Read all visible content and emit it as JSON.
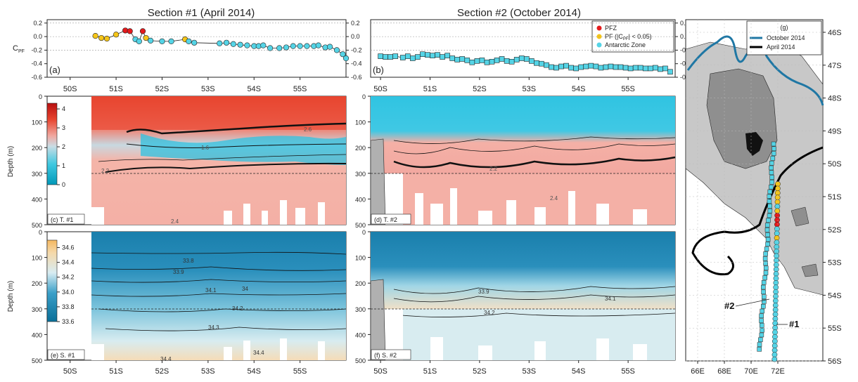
{
  "figure": {
    "titles": [
      "Section #1 (April 2014)",
      "Section #2 (October 2014)"
    ],
    "panel_labels": {
      "a": "(a)",
      "b": "(b)",
      "c": "(c) T. #1",
      "d": "(d) T. #2",
      "e": "(e) S. #1",
      "f": "(f) S. #2",
      "g": "(g)"
    },
    "cpf_label": "C",
    "cpf_sub": "PF",
    "depth_label": "Depth (m)",
    "lat_ticks": [
      "50S",
      "51S",
      "52S",
      "53S",
      "54S",
      "55S"
    ],
    "cpf_ticks": [
      "0.2",
      "0.0",
      "-0.2",
      "-0.4",
      "-0.6"
    ],
    "depth_ticks": [
      "0",
      "100",
      "200",
      "300",
      "400",
      "500"
    ],
    "temp_colorbar_ticks": [
      "4",
      "3",
      "2",
      "1",
      "0"
    ],
    "sal_colorbar_ticks": [
      "34.6",
      "34.4",
      "34.2",
      "34.0",
      "33.8",
      "33.6"
    ],
    "legend_b": [
      "PFZ",
      "PF (|C",
      "PF",
      "| < 0.05)",
      "Antarctic Zone"
    ],
    "legend_g": [
      "October 2014",
      "April 2014"
    ],
    "map_lat_ticks": [
      "46S",
      "47S",
      "48S",
      "49S",
      "50S",
      "51S",
      "52S",
      "53S",
      "54S",
      "55S",
      "56S"
    ],
    "map_lon_ticks": [
      "66E",
      "68E",
      "70E",
      "72E"
    ],
    "section_labels": [
      "#2",
      "#1"
    ],
    "contour_labels_t1": [
      "2.6",
      "1.6",
      "2.2",
      "2.4"
    ],
    "contour_labels_t2": [
      "2.2",
      "2.4"
    ],
    "contour_labels_s1": [
      "33.8",
      "33.9",
      "34",
      "34.1",
      "34.2",
      "34.3",
      "34.4",
      "34.4"
    ],
    "contour_labels_s2": [
      "33.9",
      "34.1",
      "34.2"
    ]
  },
  "colors": {
    "pfz": "#e41a1c",
    "pf": "#f5c518",
    "az": "#55d4e6",
    "oct_track": "#1f77a4",
    "apr_track": "#000000",
    "map_light": "#c8c8c8",
    "map_mid": "#8f8f8f",
    "map_dark": "#555555"
  },
  "chart_data": [
    {
      "panel": "a",
      "type": "scatter",
      "title": "Section #1 (April 2014)",
      "ylabel": "C_PF",
      "ylim": [
        -0.6,
        0.25
      ],
      "xlim": [
        49.5,
        56
      ],
      "series": [
        {
          "name": "C_PF",
          "points": [
            [
              50.55,
              0.01,
              "PF"
            ],
            [
              50.68,
              -0.02,
              "PF"
            ],
            [
              50.8,
              -0.03,
              "PF"
            ],
            [
              51.0,
              0.03,
              "PF"
            ],
            [
              51.2,
              0.09,
              "PFZ"
            ],
            [
              51.3,
              0.08,
              "PFZ"
            ],
            [
              51.42,
              -0.04,
              "AZ"
            ],
            [
              51.5,
              -0.07,
              "AZ"
            ],
            [
              51.58,
              0.08,
              "PFZ"
            ],
            [
              51.65,
              -0.02,
              "PF"
            ],
            [
              51.75,
              -0.06,
              "AZ"
            ],
            [
              52.0,
              -0.07,
              "AZ"
            ],
            [
              52.2,
              -0.07,
              "AZ"
            ],
            [
              52.5,
              -0.04,
              "PF"
            ],
            [
              52.58,
              -0.07,
              "AZ"
            ],
            [
              52.7,
              -0.09,
              "AZ"
            ],
            [
              53.25,
              -0.1,
              "AZ"
            ],
            [
              53.4,
              -0.09,
              "AZ"
            ],
            [
              53.55,
              -0.11,
              "AZ"
            ],
            [
              53.7,
              -0.12,
              "AZ"
            ],
            [
              53.85,
              -0.13,
              "AZ"
            ],
            [
              54.0,
              -0.14,
              "AZ"
            ],
            [
              54.1,
              -0.14,
              "AZ"
            ],
            [
              54.2,
              -0.13,
              "AZ"
            ],
            [
              54.35,
              -0.17,
              "AZ"
            ],
            [
              54.55,
              -0.17,
              "AZ"
            ],
            [
              54.7,
              -0.16,
              "AZ"
            ],
            [
              54.85,
              -0.14,
              "AZ"
            ],
            [
              55.0,
              -0.14,
              "AZ"
            ],
            [
              55.15,
              -0.14,
              "AZ"
            ],
            [
              55.3,
              -0.14,
              "AZ"
            ],
            [
              55.4,
              -0.13,
              "AZ"
            ],
            [
              55.55,
              -0.16,
              "AZ"
            ],
            [
              55.65,
              -0.15,
              "AZ"
            ],
            [
              55.8,
              -0.2,
              "AZ"
            ],
            [
              55.93,
              -0.26,
              "AZ"
            ],
            [
              56.0,
              -0.32,
              "AZ"
            ]
          ]
        }
      ]
    },
    {
      "panel": "b",
      "type": "scatter",
      "title": "Section #2 (October 2014)",
      "ylabel": "C_PF",
      "ylim": [
        -0.6,
        0.25
      ],
      "xlim": [
        49.8,
        55.95
      ],
      "series": [
        {
          "name": "Antarctic Zone",
          "x": [
            50.0,
            50.1,
            50.2,
            50.3,
            50.45,
            50.55,
            50.65,
            50.75,
            50.85,
            50.95,
            51.05,
            51.15,
            51.25,
            51.35,
            51.45,
            51.55,
            51.65,
            51.75,
            51.85,
            51.95,
            52.05,
            52.15,
            52.25,
            52.35,
            52.45,
            52.55,
            52.65,
            52.75,
            52.85,
            52.95,
            53.05,
            53.15,
            53.25,
            53.35,
            53.45,
            53.55,
            53.65,
            53.75,
            53.85,
            53.95,
            54.05,
            54.15,
            54.25,
            54.35,
            54.45,
            54.55,
            54.65,
            54.75,
            54.85,
            54.95,
            55.05,
            55.15,
            55.25,
            55.35,
            55.45,
            55.55,
            55.65,
            55.75,
            55.85
          ],
          "y": [
            -0.29,
            -0.3,
            -0.3,
            -0.29,
            -0.31,
            -0.29,
            -0.32,
            -0.3,
            -0.26,
            -0.27,
            -0.28,
            -0.27,
            -0.3,
            -0.28,
            -0.32,
            -0.34,
            -0.33,
            -0.35,
            -0.38,
            -0.36,
            -0.35,
            -0.38,
            -0.37,
            -0.35,
            -0.33,
            -0.36,
            -0.37,
            -0.34,
            -0.32,
            -0.33,
            -0.36,
            -0.39,
            -0.4,
            -0.42,
            -0.45,
            -0.46,
            -0.44,
            -0.43,
            -0.46,
            -0.47,
            -0.45,
            -0.44,
            -0.43,
            -0.44,
            -0.46,
            -0.45,
            -0.44,
            -0.45,
            -0.45,
            -0.46,
            -0.47,
            -0.46,
            -0.46,
            -0.47,
            -0.47,
            -0.46,
            -0.48,
            -0.47,
            -0.52
          ]
        }
      ]
    },
    {
      "panel": "c",
      "type": "heatmap",
      "title": "T. #1",
      "ylabel": "Depth (m)",
      "ylim": [
        500,
        0
      ],
      "colorbar": [
        0,
        4.3
      ]
    },
    {
      "panel": "d",
      "type": "heatmap",
      "title": "T. #2",
      "ylabel": "Depth (m)",
      "ylim": [
        500,
        0
      ]
    },
    {
      "panel": "e",
      "type": "heatmap",
      "title": "S. #1",
      "ylabel": "Depth (m)",
      "ylim": [
        500,
        0
      ],
      "colorbar": [
        33.6,
        34.7
      ]
    },
    {
      "panel": "f",
      "type": "heatmap",
      "title": "S. #2",
      "ylabel": "Depth (m)",
      "ylim": [
        500,
        0
      ]
    }
  ]
}
